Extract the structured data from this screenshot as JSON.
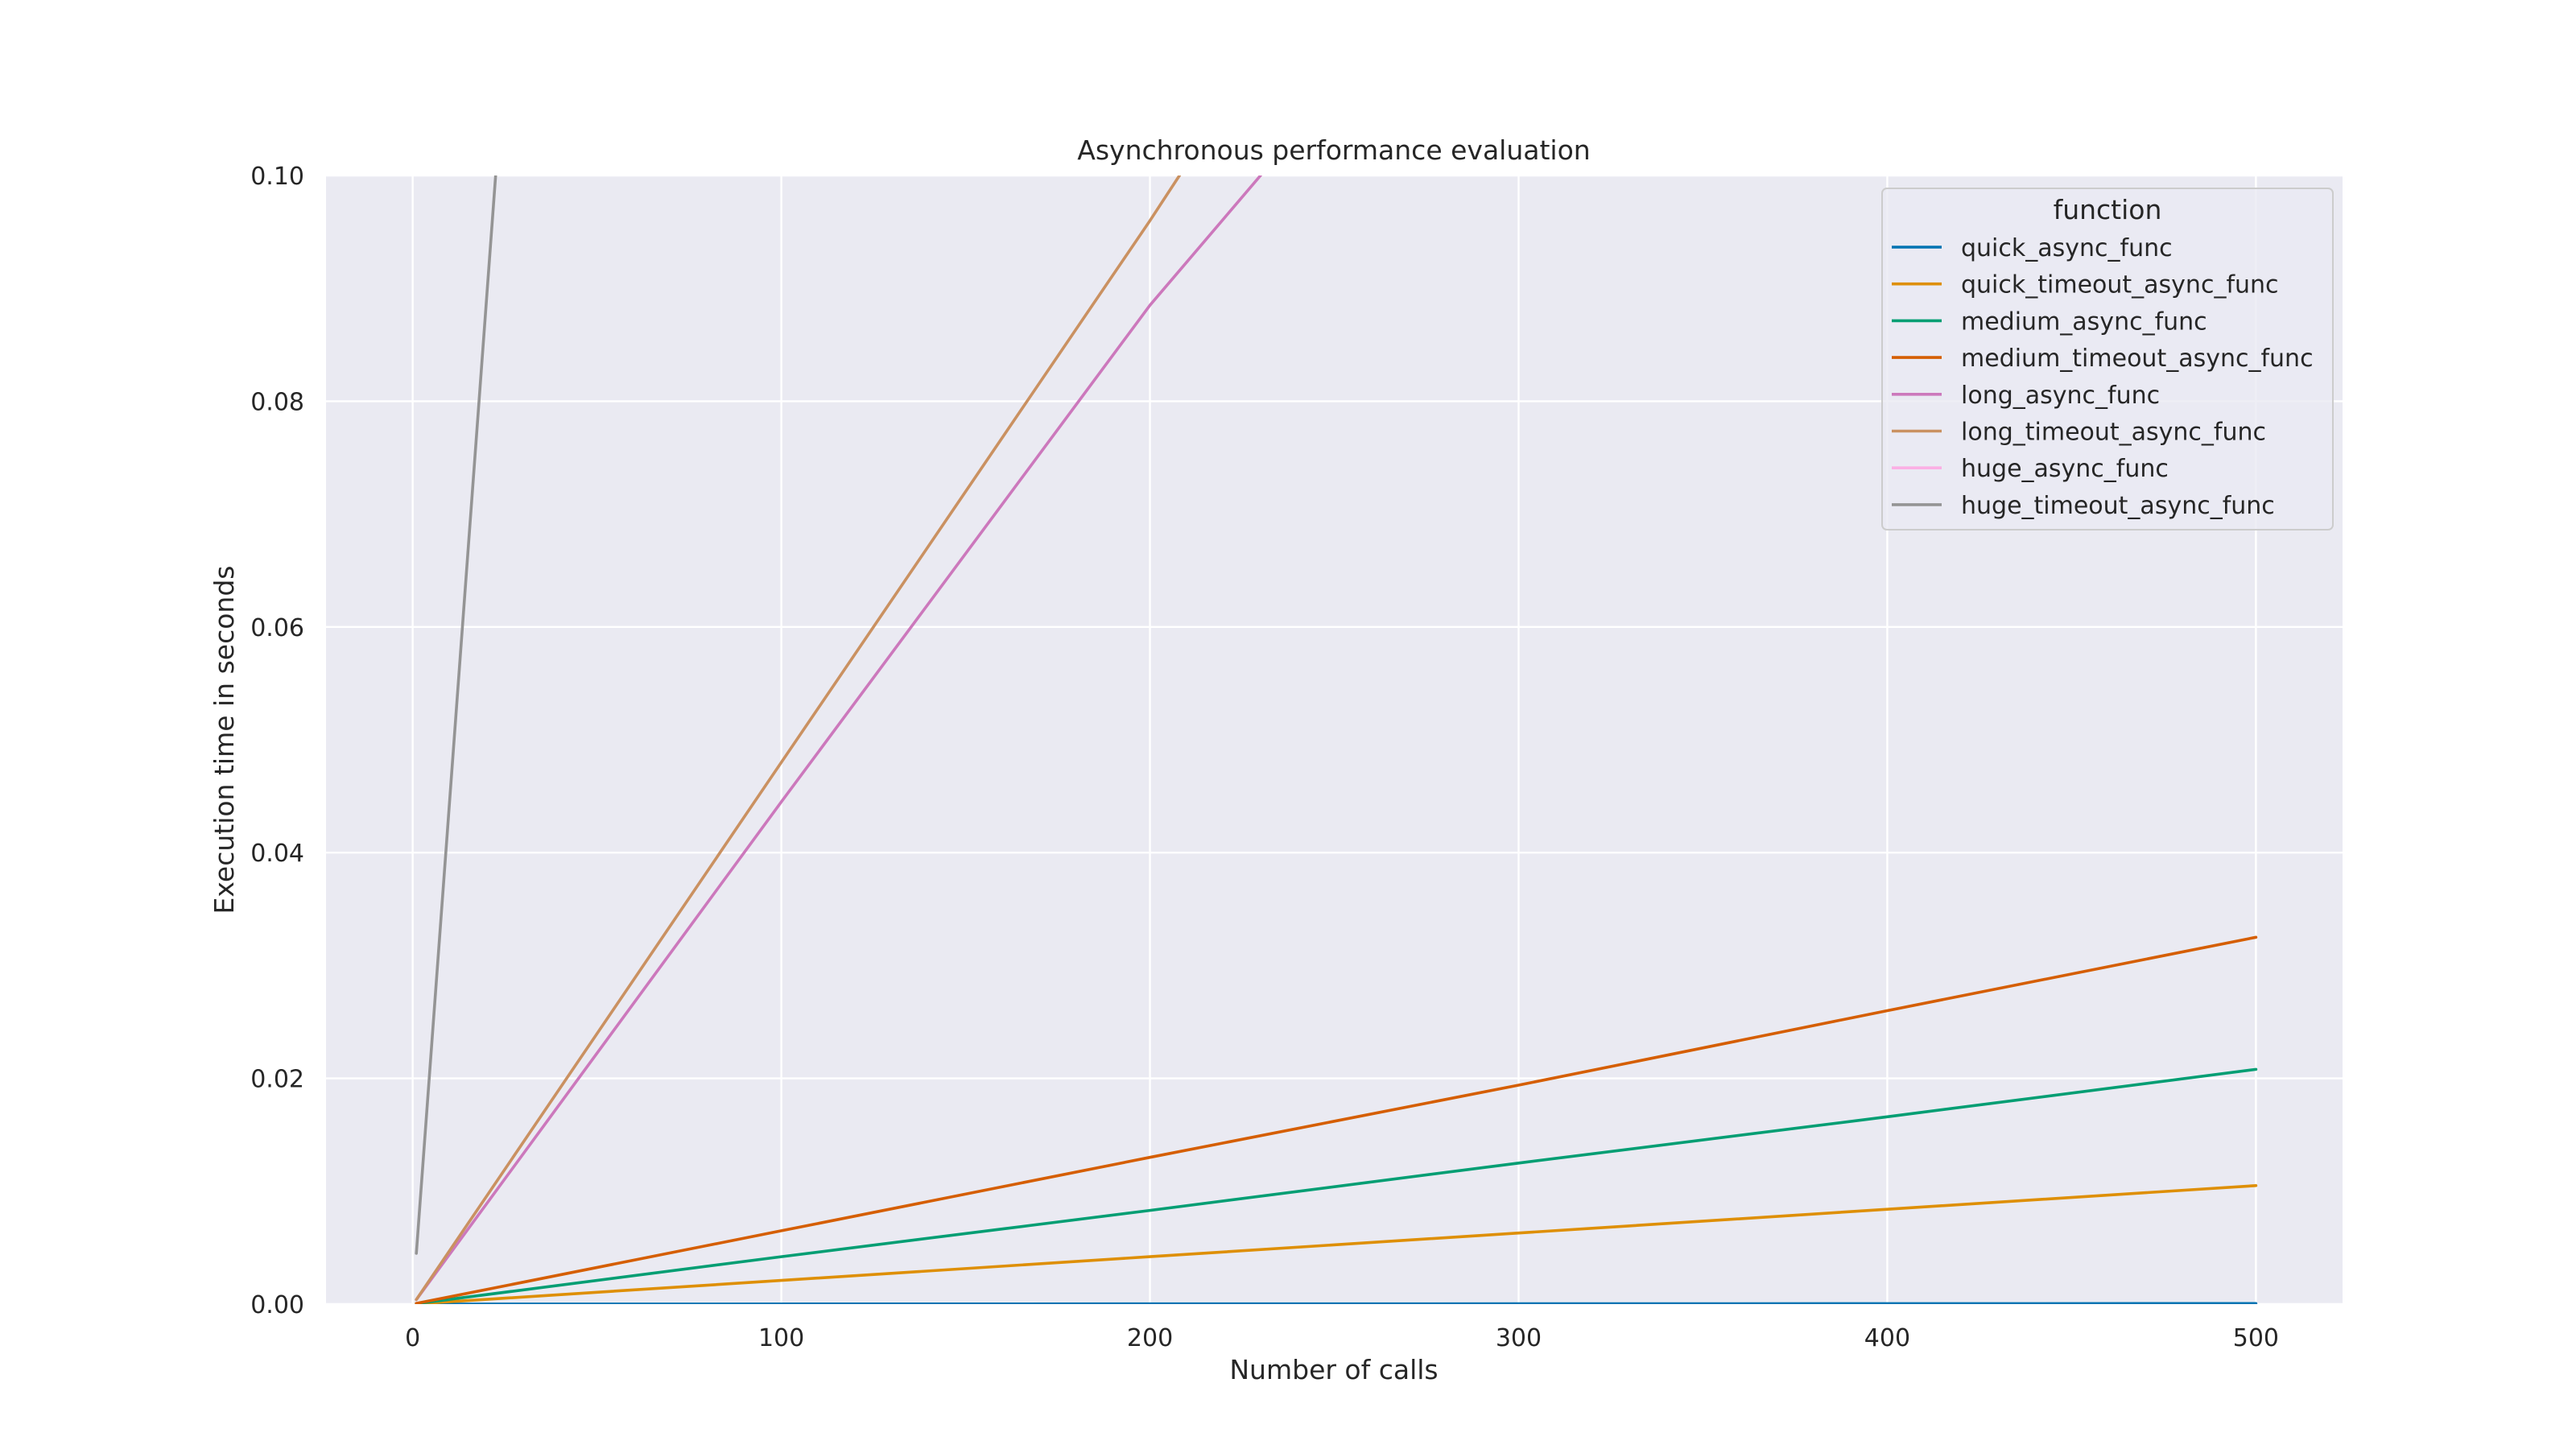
{
  "chart_data": {
    "type": "line",
    "title": "Asynchronous performance evaluation",
    "xlabel": "Number of calls",
    "ylabel": "Execution time in seconds",
    "xlim": [
      -23.5,
      523.5
    ],
    "ylim": [
      0,
      0.1
    ],
    "xticks": [
      0,
      100,
      200,
      300,
      400,
      500
    ],
    "xtick_labels": [
      "0",
      "100",
      "200",
      "300",
      "400",
      "500"
    ],
    "yticks": [
      0,
      0.02,
      0.04,
      0.06,
      0.08,
      0.1
    ],
    "ytick_labels": [
      "0.00",
      "0.02",
      "0.04",
      "0.06",
      "0.08",
      "0.10"
    ],
    "grid": true,
    "legend": {
      "title": "function",
      "placement": "top-right"
    },
    "series": [
      {
        "name": "quick_async_func",
        "color": "#0173b2",
        "x": [
          1,
          500
        ],
        "y": [
          0.0,
          5e-05
        ]
      },
      {
        "name": "quick_timeout_async_func",
        "color": "#de8f05",
        "x": [
          1,
          100,
          200,
          300,
          400,
          500
        ],
        "y": [
          2e-05,
          0.0021,
          0.0042,
          0.0063,
          0.0084,
          0.0105
        ]
      },
      {
        "name": "medium_async_func",
        "color": "#029e73",
        "x": [
          1,
          100,
          200,
          300,
          400,
          500
        ],
        "y": [
          4e-05,
          0.0042,
          0.0083,
          0.0125,
          0.0166,
          0.0208
        ]
      },
      {
        "name": "medium_timeout_async_func",
        "color": "#d55e00",
        "x": [
          1,
          100,
          200,
          300,
          400,
          500
        ],
        "y": [
          6e-05,
          0.0065,
          0.013,
          0.0194,
          0.026,
          0.0325
        ]
      },
      {
        "name": "long_async_func",
        "color": "#cc78bc",
        "x": [
          1,
          100,
          200,
          230
        ],
        "y": [
          0.0004,
          0.0445,
          0.0885,
          0.1
        ]
      },
      {
        "name": "long_timeout_async_func",
        "color": "#ca9161",
        "x": [
          1,
          100,
          200,
          208
        ],
        "y": [
          0.0004,
          0.048,
          0.096,
          0.1
        ]
      },
      {
        "name": "huge_async_func",
        "color": "#fbafe4",
        "x": [],
        "y": []
      },
      {
        "name": "huge_timeout_async_func",
        "color": "#949494",
        "x": [
          1,
          22.5
        ],
        "y": [
          0.0045,
          0.1
        ]
      }
    ]
  }
}
